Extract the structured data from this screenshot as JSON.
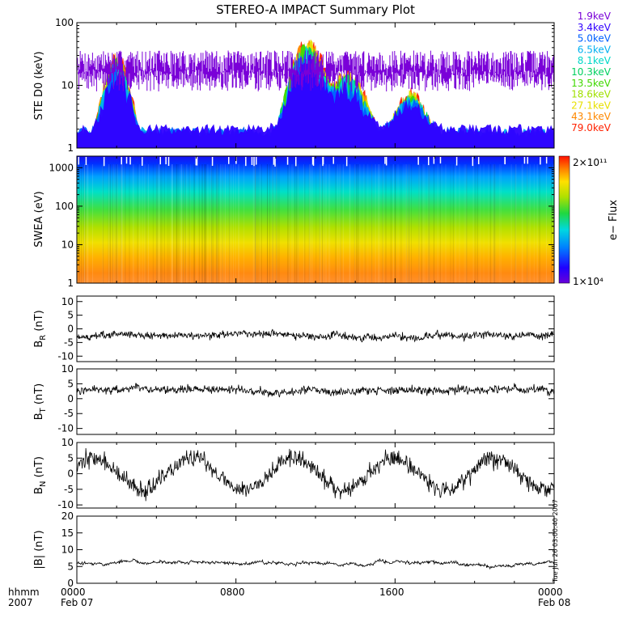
{
  "title": "STEREO-A IMPACT Summary Plot",
  "footer": {
    "format_row1": "hhmm",
    "format_row2": "2007",
    "x_ticks": [
      "0000",
      "0800",
      "1600",
      "0000"
    ],
    "date_labels": [
      "Feb 07",
      "Feb 08"
    ]
  },
  "timestamp": "Tue Jun 26 03:00:40 2007",
  "chart_data": [
    {
      "type": "line",
      "panel": "STE D0",
      "ylabel": "STE D0 (keV)",
      "yscale": "log",
      "ylim": [
        1,
        100
      ],
      "y_ticks": [
        "1",
        "10",
        "100"
      ],
      "x_range_hours": [
        0,
        24
      ],
      "series": [
        {
          "name": "1.9keV",
          "color": "#7a00d8",
          "baseline": 2.0
        },
        {
          "name": "3.4keV",
          "color": "#3000ff",
          "baseline": 1.6
        },
        {
          "name": "5.0keV",
          "color": "#0060ff",
          "baseline": 1.45
        },
        {
          "name": "6.5keV",
          "color": "#00b0f0",
          "baseline": 1.35
        },
        {
          "name": "8.1keV",
          "color": "#00d8c8",
          "baseline": 1.25
        },
        {
          "name": "10.3keV",
          "color": "#00d060",
          "baseline": 1.15
        },
        {
          "name": "13.5keV",
          "color": "#40d800",
          "baseline": 1.08
        },
        {
          "name": "18.6keV",
          "color": "#a0e000",
          "baseline": 1.04
        },
        {
          "name": "27.1keV",
          "color": "#e8e000",
          "baseline": 1.02
        },
        {
          "name": "43.1keV",
          "color": "#ff8800",
          "baseline": 1.01
        },
        {
          "name": "79.0keV",
          "color": "#ff2000",
          "baseline": 1.0
        }
      ],
      "main_band": [
        14,
        36
      ],
      "events": [
        {
          "t": 2.0,
          "peak": 35,
          "width": 0.6
        },
        {
          "t": 11.6,
          "peak": 60,
          "width": 0.8
        },
        {
          "t": 13.6,
          "peak": 18,
          "width": 0.9
        },
        {
          "t": 16.8,
          "peak": 8,
          "width": 0.8
        }
      ]
    },
    {
      "type": "heatmap",
      "panel": "SWEA",
      "ylabel": "SWEA (eV)",
      "yscale": "log",
      "ylim": [
        1,
        2000
      ],
      "y_ticks": [
        "1",
        "10",
        "100",
        "1000"
      ],
      "colorbar": {
        "label": "e− Flux",
        "max": "2×10¹¹",
        "min": "1×10⁴"
      },
      "x_range_hours": [
        0,
        24
      ]
    },
    {
      "type": "line",
      "panel": "BR",
      "ylabel_base": "B",
      "ylabel_sub": "R",
      "ylabel_unit": " (nT)",
      "ylim": [
        -12,
        12
      ],
      "y_ticks": [
        10,
        5,
        0,
        -5,
        -10
      ],
      "series": [
        {
          "name": "",
          "mean": -2.5,
          "sigma": 2.0,
          "seed": 11
        }
      ]
    },
    {
      "type": "line",
      "panel": "BT",
      "ylabel_base": "B",
      "ylabel_sub": "T",
      "ylabel_unit": " (nT)",
      "ylim": [
        -12,
        10
      ],
      "y_ticks": [
        10,
        5,
        0,
        -5,
        -10
      ],
      "series": [
        {
          "name": "",
          "mean": 3.0,
          "sigma": 2.2,
          "seed": 23
        }
      ]
    },
    {
      "type": "line",
      "panel": "BN",
      "ylabel_base": "B",
      "ylabel_sub": "N",
      "ylabel_unit": " (nT)",
      "ylim": [
        -11,
        10
      ],
      "y_ticks": [
        10,
        5,
        0,
        -5,
        -10
      ],
      "series": [
        {
          "name": "",
          "mean": 0.0,
          "sigma": 4.5,
          "seed": 37
        }
      ]
    },
    {
      "type": "line",
      "panel": "B magnitude",
      "ylabel": "|B| (nT)",
      "ylim": [
        0,
        20
      ],
      "y_ticks": [
        20,
        15,
        10,
        5,
        0
      ],
      "series": [
        {
          "name": "",
          "mean": 5.8,
          "sigma": 0.6,
          "seed": 51
        }
      ]
    }
  ]
}
